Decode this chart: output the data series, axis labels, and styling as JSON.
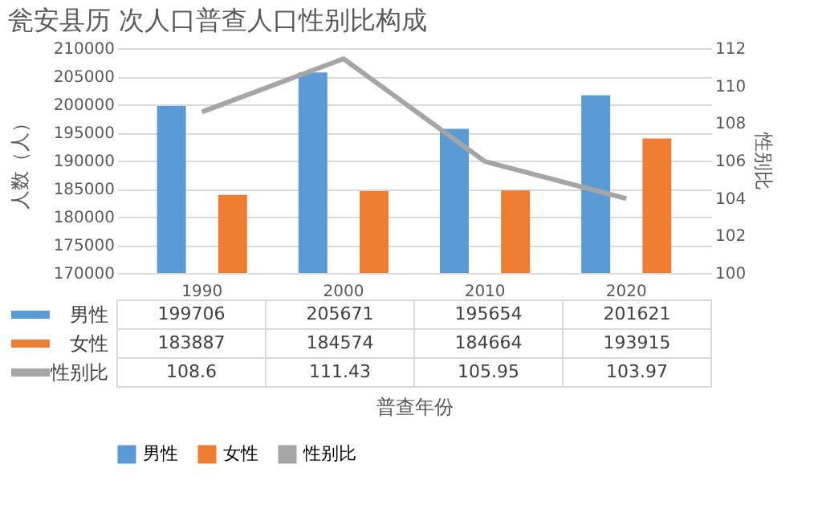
{
  "chart_data": {
    "type": "bar",
    "title": "瓮安县历 次人口普查人口性别比构成",
    "xlabel": "普查年份",
    "ylabel": "人数（人）",
    "y2label": "性别比",
    "categories": [
      "1990",
      "2000",
      "2010",
      "2020"
    ],
    "series": [
      {
        "name": "男性",
        "color": "#5b9bd5",
        "values": [
          199706,
          205671,
          195654,
          201621
        ]
      },
      {
        "name": "女性",
        "color": "#ed7d31",
        "values": [
          183887,
          184574,
          184664,
          193915
        ]
      },
      {
        "name": "性别比",
        "color": "#a5a5a5",
        "type": "line",
        "axis": "y2",
        "values": [
          108.6,
          111.43,
          105.95,
          103.97
        ]
      }
    ],
    "ylim": [
      170000,
      210000
    ],
    "yticks": [
      170000,
      175000,
      180000,
      185000,
      190000,
      195000,
      200000,
      205000,
      210000
    ],
    "y2lim": [
      100,
      112
    ],
    "y2ticks": [
      100,
      102,
      104,
      106,
      108,
      110,
      112
    ],
    "grid": "y",
    "legend": "bottom",
    "data_labels": true
  }
}
